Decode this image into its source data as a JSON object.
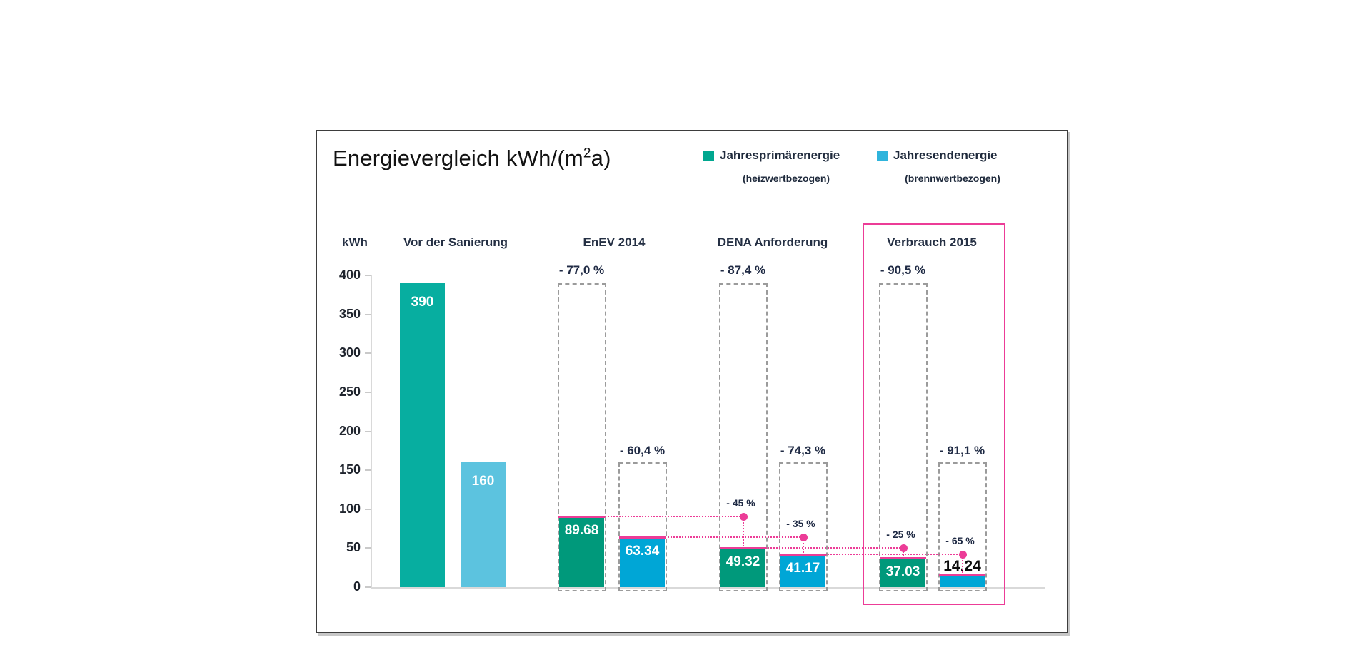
{
  "chart_data": {
    "type": "bar",
    "title": {
      "prefix": "Energievergleich kWh/(m",
      "sup": "2",
      "suffix": "a)"
    },
    "axis": {
      "unit_label": "kWh",
      "ymin": 0,
      "ymax": 400,
      "tick_step": 50,
      "tick_labels": [
        "400",
        "350",
        "300",
        "250",
        "200",
        "150",
        "100",
        "50",
        "0"
      ]
    },
    "legend": [
      {
        "name": "Jahresprimärenergie",
        "sub": "(heizwertbezogen)",
        "color": "#00A78F"
      },
      {
        "name": "Jahresendenergie",
        "sub": "(brennwertbezogen)",
        "color": "#2FB4DC"
      }
    ],
    "annotation_color": "#EC3C97",
    "grid": false,
    "legend_position": "top-right",
    "groups": [
      {
        "label": "Vor der Sanierung",
        "highlight": false,
        "bars": [
          {
            "series": "Jahresprimärenergie",
            "value": 390,
            "value_label": "390",
            "color": "#07AEA0",
            "label_style": "inside-white",
            "pink_top": false
          },
          {
            "series": "Jahresendenergie",
            "value": 160,
            "value_label": "160",
            "color": "#5CC3DF",
            "label_style": "inside-white",
            "pink_top": false
          }
        ]
      },
      {
        "label": "EnEV 2014",
        "highlight": false,
        "bars": [
          {
            "series": "Jahresprimärenergie",
            "value": 89.68,
            "value_label": "89.68",
            "color": "#00997B",
            "label_style": "inside-white",
            "reference": 390,
            "reduction_label": "- 77,0 %",
            "pink_top": true
          },
          {
            "series": "Jahresendenergie",
            "value": 63.34,
            "value_label": "63.34",
            "color": "#00A6D6",
            "label_style": "inside-white",
            "reference": 160,
            "reduction_label": "- 60,4 %",
            "pink_top": true
          }
        ]
      },
      {
        "label": "DENA Anforderung",
        "highlight": false,
        "bars": [
          {
            "series": "Jahresprimärenergie",
            "value": 49.32,
            "value_label": "49.32",
            "color": "#00997B",
            "label_style": "inside-white",
            "reference": 390,
            "reduction_label": "- 87,4 %",
            "step_label": "- 45 %",
            "pink_top": true
          },
          {
            "series": "Jahresendenergie",
            "value": 41.17,
            "value_label": "41.17",
            "color": "#00A6D6",
            "label_style": "inside-white",
            "reference": 160,
            "reduction_label": "- 74,3 %",
            "step_label": "- 35 %",
            "pink_top": true
          }
        ]
      },
      {
        "label": "Verbrauch 2015",
        "highlight": true,
        "bars": [
          {
            "series": "Jahresprimärenergie",
            "value": 37.03,
            "value_label": "37.03",
            "color": "#00997B",
            "label_style": "inside-white",
            "reference": 390,
            "reduction_label": "- 90,5 %",
            "step_label": "- 25 %",
            "pink_top": true
          },
          {
            "series": "Jahresendenergie",
            "value": 14.24,
            "value_label": "14.24",
            "color": "#00A6D6",
            "label_style": "above-black",
            "reference": 160,
            "reduction_label": "- 91,1 %",
            "step_label": "- 65 %",
            "pink_top": true
          }
        ]
      }
    ]
  }
}
